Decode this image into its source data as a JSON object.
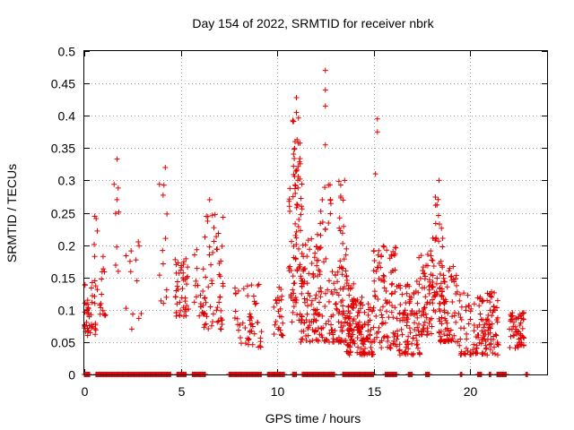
{
  "chart_data": {
    "type": "scatter",
    "title": "Day 154 of 2022, SRMTID for receiver nbrk",
    "xlabel": "GPS time / hours",
    "ylabel": "SRMTID / TECUs",
    "xlim": [
      0,
      24
    ],
    "ylim": [
      0,
      0.5
    ],
    "xticks": [
      0,
      5,
      10,
      15,
      20
    ],
    "xtick_labels": [
      "0",
      "5",
      "10",
      "15",
      "20"
    ],
    "yticks": [
      0,
      0.05,
      0.1,
      0.15,
      0.2,
      0.25,
      0.3,
      0.35,
      0.4,
      0.45,
      0.5
    ],
    "ytick_labels": [
      "0",
      "0.05",
      "0.1",
      "0.15",
      "0.2",
      "0.25",
      "0.3",
      "0.35",
      "0.4",
      "0.45",
      "0.5"
    ],
    "grid": true,
    "marker": "+",
    "color": "#e00000",
    "clusters": [
      {
        "x0": 0.0,
        "x1": 0.6,
        "ymin": 0.06,
        "ymax": 0.14,
        "n": 40
      },
      {
        "x0": 0.4,
        "x1": 0.7,
        "ymin": 0.12,
        "ymax": 0.25,
        "n": 10
      },
      {
        "x0": 0.8,
        "x1": 1.2,
        "ymin": 0.09,
        "ymax": 0.19,
        "n": 14
      },
      {
        "x0": 1.5,
        "x1": 1.8,
        "ymin": 0.15,
        "ymax": 0.31,
        "n": 8
      },
      {
        "x0": 2.0,
        "x1": 3.0,
        "ymin": 0.07,
        "ymax": 0.2,
        "n": 12
      },
      {
        "x0": 3.8,
        "x1": 4.3,
        "ymin": 0.1,
        "ymax": 0.3,
        "n": 12
      },
      {
        "x0": 4.7,
        "x1": 5.4,
        "ymin": 0.09,
        "ymax": 0.18,
        "n": 45
      },
      {
        "x0": 5.7,
        "x1": 6.3,
        "ymin": 0.09,
        "ymax": 0.2,
        "n": 20
      },
      {
        "x0": 6.2,
        "x1": 7.2,
        "ymin": 0.07,
        "ymax": 0.25,
        "n": 55
      },
      {
        "x0": 7.8,
        "x1": 9.2,
        "ymin": 0.04,
        "ymax": 0.14,
        "n": 50
      },
      {
        "x0": 9.8,
        "x1": 10.3,
        "ymin": 0.06,
        "ymax": 0.14,
        "n": 25
      },
      {
        "x0": 10.6,
        "x1": 11.3,
        "ymin": 0.08,
        "ymax": 0.3,
        "n": 70
      },
      {
        "x0": 10.8,
        "x1": 11.2,
        "ymin": 0.3,
        "ymax": 0.4,
        "n": 25
      },
      {
        "x0": 11.2,
        "x1": 12.2,
        "ymin": 0.05,
        "ymax": 0.22,
        "n": 90
      },
      {
        "x0": 12.2,
        "x1": 12.8,
        "ymin": 0.05,
        "ymax": 0.3,
        "n": 45
      },
      {
        "x0": 12.8,
        "x1": 14.0,
        "ymin": 0.05,
        "ymax": 0.16,
        "n": 90
      },
      {
        "x0": 13.2,
        "x1": 13.6,
        "ymin": 0.16,
        "ymax": 0.3,
        "n": 20
      },
      {
        "x0": 13.6,
        "x1": 15.0,
        "ymin": 0.03,
        "ymax": 0.12,
        "n": 120
      },
      {
        "x0": 15.0,
        "x1": 16.2,
        "ymin": 0.04,
        "ymax": 0.2,
        "n": 90
      },
      {
        "x0": 16.2,
        "x1": 17.4,
        "ymin": 0.03,
        "ymax": 0.14,
        "n": 90
      },
      {
        "x0": 17.2,
        "x1": 18.2,
        "ymin": 0.06,
        "ymax": 0.2,
        "n": 70
      },
      {
        "x0": 18.0,
        "x1": 18.6,
        "ymin": 0.12,
        "ymax": 0.28,
        "n": 30
      },
      {
        "x0": 18.4,
        "x1": 19.4,
        "ymin": 0.05,
        "ymax": 0.17,
        "n": 80
      },
      {
        "x0": 19.4,
        "x1": 21.5,
        "ymin": 0.03,
        "ymax": 0.13,
        "n": 140
      },
      {
        "x0": 22.0,
        "x1": 22.8,
        "ymin": 0.04,
        "ymax": 0.1,
        "n": 55
      }
    ],
    "highlights": [
      {
        "x": 12.5,
        "y": 0.47
      },
      {
        "x": 12.5,
        "y": 0.44
      },
      {
        "x": 12.5,
        "y": 0.415
      },
      {
        "x": 11.0,
        "y": 0.428
      },
      {
        "x": 11.0,
        "y": 0.405
      },
      {
        "x": 15.2,
        "y": 0.395
      },
      {
        "x": 15.2,
        "y": 0.375
      },
      {
        "x": 12.5,
        "y": 0.355
      },
      {
        "x": 1.7,
        "y": 0.333
      },
      {
        "x": 4.2,
        "y": 0.32
      },
      {
        "x": 15.1,
        "y": 0.31
      },
      {
        "x": 18.4,
        "y": 0.3
      },
      {
        "x": 13.5,
        "y": 0.3
      },
      {
        "x": 6.5,
        "y": 0.27
      },
      {
        "x": 2.8,
        "y": 0.205
      }
    ],
    "baseline_segments": [
      [
        0.0,
        0.3
      ],
      [
        0.6,
        4.5
      ],
      [
        4.8,
        5.3
      ],
      [
        5.6,
        6.3
      ],
      [
        7.5,
        9.2
      ],
      [
        9.5,
        10.4
      ],
      [
        10.8,
        11.0
      ],
      [
        11.3,
        13.0
      ],
      [
        13.4,
        15.0
      ],
      [
        15.6,
        16.2
      ],
      [
        16.8,
        17.0
      ],
      [
        17.7,
        17.9
      ],
      [
        19.5,
        19.6
      ],
      [
        20.4,
        20.6
      ],
      [
        21.0,
        21.1
      ],
      [
        21.4,
        21.9
      ],
      [
        22.9,
        23.0
      ]
    ],
    "seed": 154
  }
}
